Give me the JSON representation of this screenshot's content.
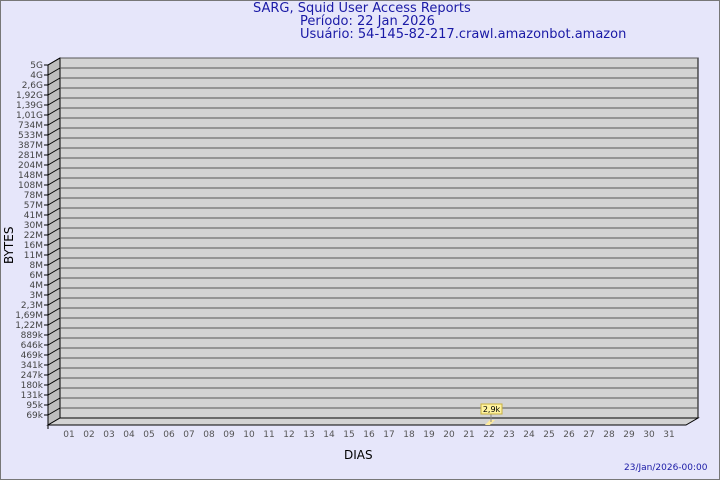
{
  "header": {
    "title": "SARG, Squid User Access Reports",
    "period": "Período: 22 Jan 2026",
    "user": "Usuário: 54-145-82-217.crawl.amazonbot.amazon"
  },
  "footer": {
    "timestamp": "23/Jan/2026-00:00"
  },
  "chart_data": {
    "type": "bar",
    "xlabel": "DIAS",
    "ylabel": "BYTES",
    "y_scale": "log",
    "grid": true,
    "categories": [
      "01",
      "02",
      "03",
      "04",
      "05",
      "06",
      "07",
      "08",
      "09",
      "10",
      "11",
      "12",
      "13",
      "14",
      "15",
      "16",
      "17",
      "18",
      "19",
      "20",
      "21",
      "22",
      "23",
      "24",
      "25",
      "26",
      "27",
      "28",
      "29",
      "30",
      "31"
    ],
    "y_tick_labels": [
      "5G",
      "4G",
      "2,6G",
      "1,92G",
      "1,39G",
      "1,01G",
      "734M",
      "533M",
      "387M",
      "281M",
      "204M",
      "148M",
      "108M",
      "78M",
      "57M",
      "41M",
      "30M",
      "22M",
      "16M",
      "11M",
      "8M",
      "6M",
      "4M",
      "3M",
      "2,3M",
      "1,69M",
      "1,22M",
      "889k",
      "646k",
      "469k",
      "341k",
      "247k",
      "180k",
      "131k",
      "95k",
      "69k"
    ],
    "series": [
      {
        "values": [
          null,
          null,
          null,
          null,
          null,
          null,
          null,
          null,
          null,
          null,
          null,
          null,
          null,
          null,
          null,
          null,
          null,
          null,
          null,
          null,
          null,
          2900,
          null,
          null,
          null,
          null,
          null,
          null,
          null,
          null,
          null
        ]
      }
    ],
    "data_labels": {
      "22": "2,9k"
    },
    "colors": {
      "wall": "#d3d3d3",
      "bar": "#ffeb9c",
      "label_bg": "#fff3a0",
      "text": "#1a1aa6"
    }
  }
}
